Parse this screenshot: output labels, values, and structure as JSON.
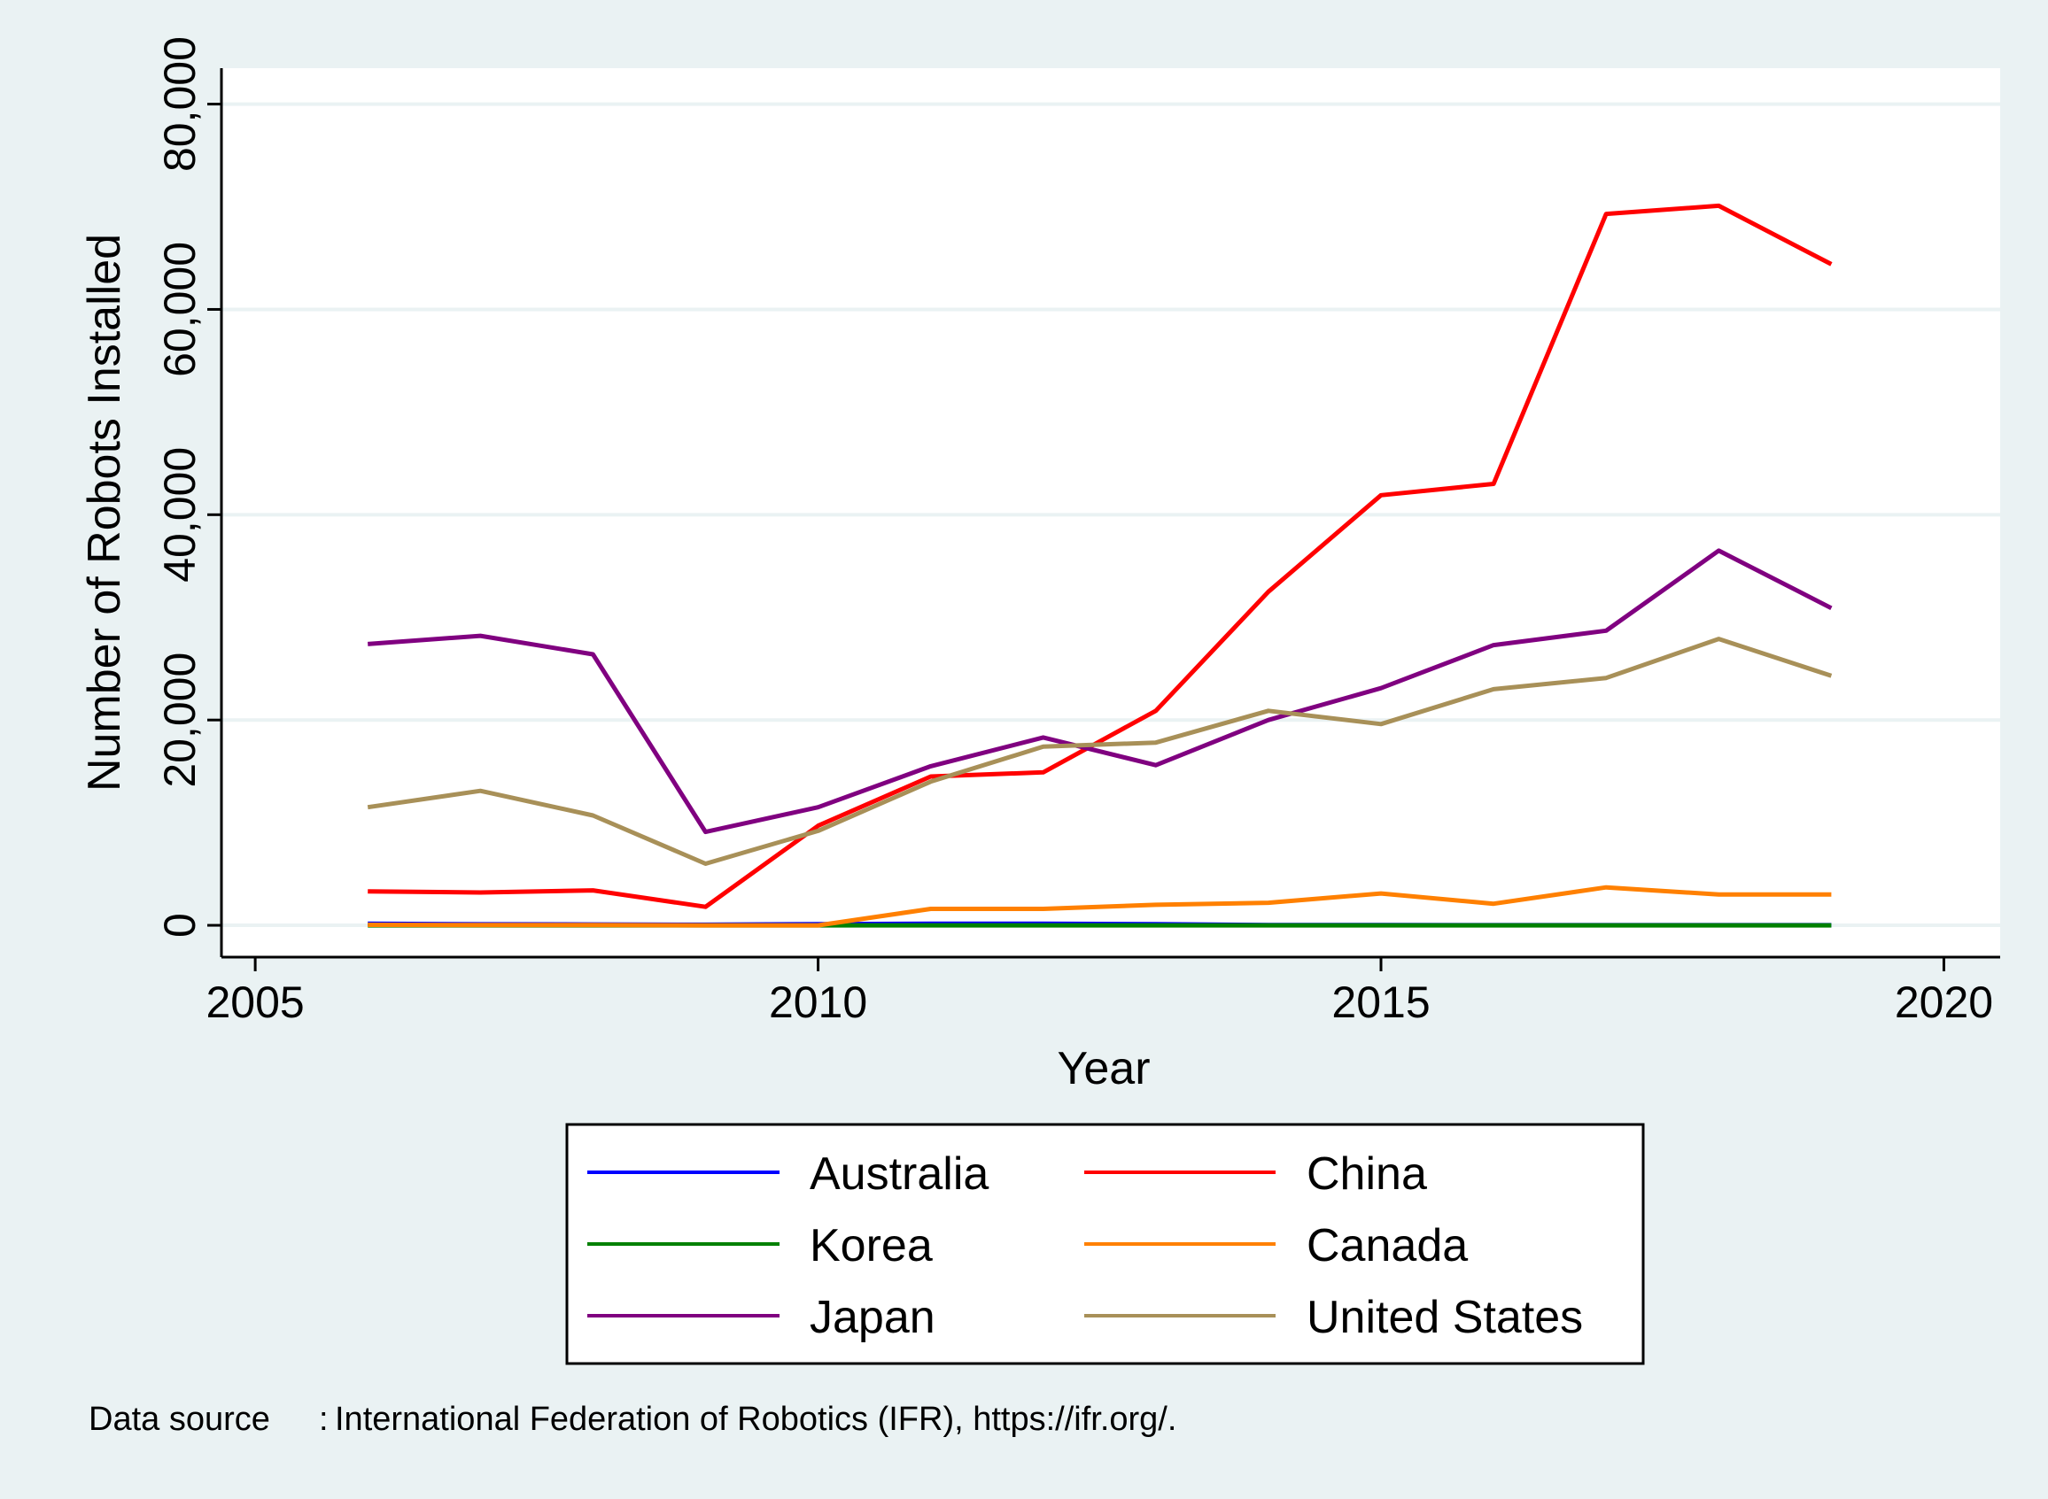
{
  "colors": {
    "outer_background": "#eaf2f3",
    "plot_background": "#ffffff",
    "gridline": "#eaf2f3",
    "axis": "#000000",
    "legend_border": "#000000"
  },
  "chart_data": {
    "type": "line",
    "title": "",
    "xlabel": "Year",
    "ylabel": "Number of Robots Installed",
    "xlim": [
      2004.7,
      2020.5
    ],
    "ylim": [
      -3100,
      83500
    ],
    "x_ticks": [
      2005,
      2010,
      2015,
      2020
    ],
    "x_tick_labels": [
      "2005",
      "2010",
      "2015",
      "2020"
    ],
    "y_ticks": [
      0,
      20000,
      40000,
      60000,
      80000
    ],
    "y_tick_labels": [
      "0",
      "20,000",
      "40,000",
      "60,000",
      "80,000"
    ],
    "grid": true,
    "legend_position": "bottom",
    "x": [
      2006,
      2007,
      2008,
      2009,
      2010,
      2011,
      2012,
      2013,
      2014,
      2015,
      2016,
      2017,
      2018,
      2019
    ],
    "series": [
      {
        "name": "Australia",
        "color": "#0000ff",
        "values": [
          150,
          100,
          80,
          60,
          120,
          150,
          150,
          120,
          20,
          20,
          10,
          10,
          10,
          10
        ]
      },
      {
        "name": "China",
        "color": "#ff0000",
        "values": [
          3300,
          3200,
          3400,
          1800,
          9700,
          14500,
          14900,
          20900,
          32500,
          41900,
          43000,
          69300,
          70100,
          64400
        ]
      },
      {
        "name": "Korea",
        "color": "#008000",
        "values": [
          0,
          0,
          0,
          0,
          0,
          0,
          0,
          0,
          0,
          0,
          0,
          0,
          0,
          0
        ]
      },
      {
        "name": "Canada",
        "color": "#ff8000",
        "values": [
          50,
          20,
          20,
          0,
          0,
          1600,
          1600,
          2000,
          2200,
          3100,
          2100,
          3700,
          3000,
          3000
        ]
      },
      {
        "name": "Japan",
        "color": "#800080",
        "values": [
          27400,
          28200,
          26400,
          9100,
          11500,
          15500,
          18300,
          15600,
          20000,
          23100,
          27300,
          28700,
          36500,
          30900
        ]
      },
      {
        "name": "United States",
        "color": "#a89058",
        "values": [
          11500,
          13100,
          10700,
          6000,
          9200,
          14000,
          17400,
          17800,
          20900,
          19600,
          23000,
          24100,
          27900,
          24300
        ]
      }
    ]
  },
  "legend": {
    "items": [
      {
        "label": "Australia",
        "color": "#0000ff"
      },
      {
        "label": "China",
        "color": "#ff0000"
      },
      {
        "label": "Korea",
        "color": "#008000"
      },
      {
        "label": "Canada",
        "color": "#ff8000"
      },
      {
        "label": "Japan",
        "color": "#800080"
      },
      {
        "label": "United States",
        "color": "#a89058"
      }
    ]
  },
  "note": {
    "label": "Data source",
    "separator": ":",
    "text": "International Federation of Robotics (IFR), https://ifr.org/."
  }
}
